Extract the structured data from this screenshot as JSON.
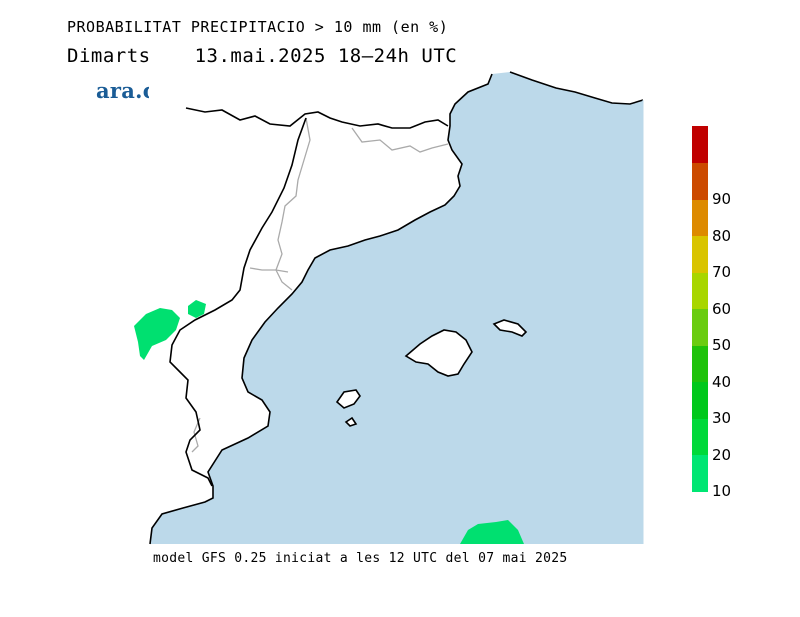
{
  "header": {
    "title_line1": "PROBABILITAT PRECIPITACIO > 10 mm (en %)",
    "day": "Dimarts",
    "date_range": "13.mai.2025 18–24h UTC",
    "logo_text": "ara.cat"
  },
  "footer": {
    "model_info": "model GFS 0.25 iniciat a les 12 UTC del 07 mai 2025"
  },
  "colors": {
    "sea": "#bcd9ea",
    "land": "#ffffff",
    "coast": "#000000",
    "borders": "#aaaaaa",
    "precip": "#00e070"
  },
  "legend": {
    "levels": [
      {
        "label": "10",
        "color": "#00e673"
      },
      {
        "label": "20",
        "color": "#00d93a"
      },
      {
        "label": "30",
        "color": "#00c81b"
      },
      {
        "label": "40",
        "color": "#1fc20a"
      },
      {
        "label": "50",
        "color": "#6acc10"
      },
      {
        "label": "60",
        "color": "#a8d600"
      },
      {
        "label": "70",
        "color": "#d9c400"
      },
      {
        "label": "80",
        "color": "#dd8a00"
      },
      {
        "label": "90",
        "color": "#cc4a00"
      },
      {
        "label": "",
        "color": "#c00000"
      }
    ]
  }
}
